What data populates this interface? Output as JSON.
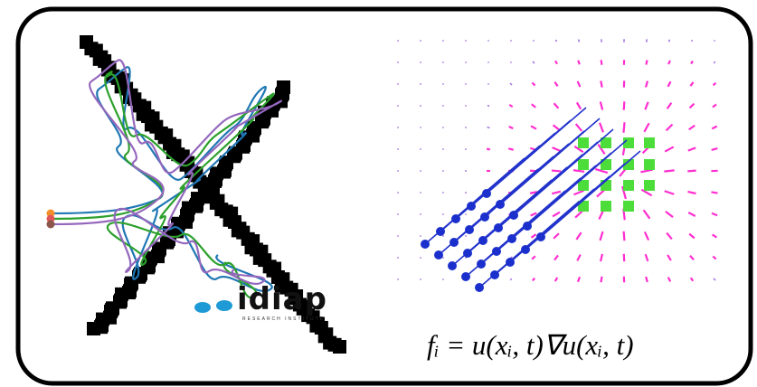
{
  "formula": "fᵢ = u(xᵢ, t)∇u(xᵢ, t)",
  "logo": {
    "name": "idiap",
    "tagline": "RESEARCH INSTITUTE"
  }
}
